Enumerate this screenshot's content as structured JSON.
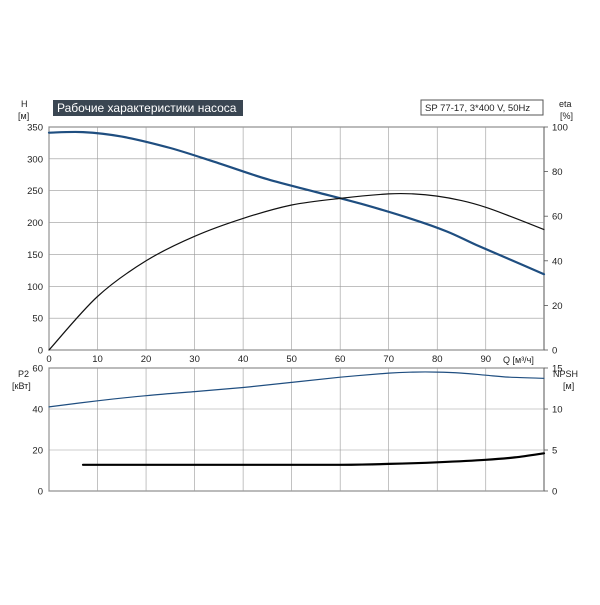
{
  "header": {
    "title": "Рабочие характеристики насоса",
    "model": "SP 77-17, 3*400 V, 50Hz"
  },
  "colors": {
    "title_bg": "#3a4652",
    "head_curve": "#1f4e80",
    "eta_curve": "#111111",
    "p2_curve": "#1f4e80",
    "npsh_curve": "#000000",
    "grid": "#9a9a9a",
    "frame": "#555555"
  },
  "axis_labels": {
    "top_left_name": "H",
    "top_left_unit": "[м]",
    "top_right_name": "eta",
    "top_right_unit": "[%]",
    "x_name": "Q [м³/ч]",
    "bottom_left_name": "P2",
    "bottom_left_unit": "[кВт]",
    "bottom_right_name": "NPSH",
    "bottom_right_unit": "[м]"
  },
  "chart_data": [
    {
      "type": "line",
      "title": "Рабочие характеристики насоса",
      "subtitle": "SP 77-17, 3*400 V, 50Hz",
      "xlabel": "Q [м³/ч]",
      "x_ticks": [
        0,
        10,
        20,
        30,
        40,
        50,
        60,
        70,
        80,
        90
      ],
      "xlim": [
        0,
        102
      ],
      "y_left": {
        "label": "H [м]",
        "ylim": [
          0,
          350
        ],
        "ticks": [
          0,
          50,
          100,
          150,
          200,
          250,
          300,
          350
        ]
      },
      "y_right": {
        "label": "eta [%]",
        "ylim": [
          0,
          100
        ],
        "ticks": [
          0,
          20,
          40,
          60,
          80,
          100
        ]
      },
      "grid": true,
      "series": [
        {
          "key": "H",
          "axis": "left",
          "x": [
            0,
            7,
            15,
            25,
            35,
            45,
            55,
            65,
            75,
            82,
            88,
            95,
            102
          ],
          "y": [
            341,
            342,
            335,
            317,
            293,
            268,
            248,
            228,
            205,
            186,
            165,
            142,
            119
          ]
        },
        {
          "key": "eta",
          "axis": "right",
          "x": [
            0,
            10,
            20,
            30,
            40,
            50,
            60,
            70,
            75,
            80,
            85,
            90,
            95,
            102
          ],
          "y": [
            0,
            24,
            40,
            51,
            59,
            65,
            68,
            70,
            70,
            69,
            67,
            64,
            60,
            54
          ]
        }
      ]
    },
    {
      "type": "line",
      "xlim": [
        0,
        102
      ],
      "y_left": {
        "label": "P2 [кВт]",
        "ylim": [
          0,
          60
        ],
        "ticks": [
          0,
          20,
          40,
          60
        ]
      },
      "y_right": {
        "label": "NPSH [м]",
        "ylim": [
          0,
          15
        ],
        "ticks": [
          0,
          5,
          10,
          15
        ]
      },
      "grid": true,
      "series": [
        {
          "key": "P2",
          "axis": "left",
          "x": [
            0,
            10,
            20,
            30,
            40,
            50,
            60,
            70,
            75,
            80,
            85,
            90,
            95,
            102
          ],
          "y": [
            41,
            44,
            46.5,
            48.5,
            50.5,
            53,
            55.5,
            57.5,
            58,
            58,
            57.5,
            56.5,
            55.5,
            55
          ]
        },
        {
          "key": "NPSH",
          "axis": "right",
          "x": [
            7,
            20,
            40,
            60,
            70,
            80,
            90,
            96,
            102
          ],
          "y": [
            3.2,
            3.2,
            3.2,
            3.2,
            3.3,
            3.5,
            3.8,
            4.1,
            4.6
          ]
        }
      ]
    }
  ]
}
